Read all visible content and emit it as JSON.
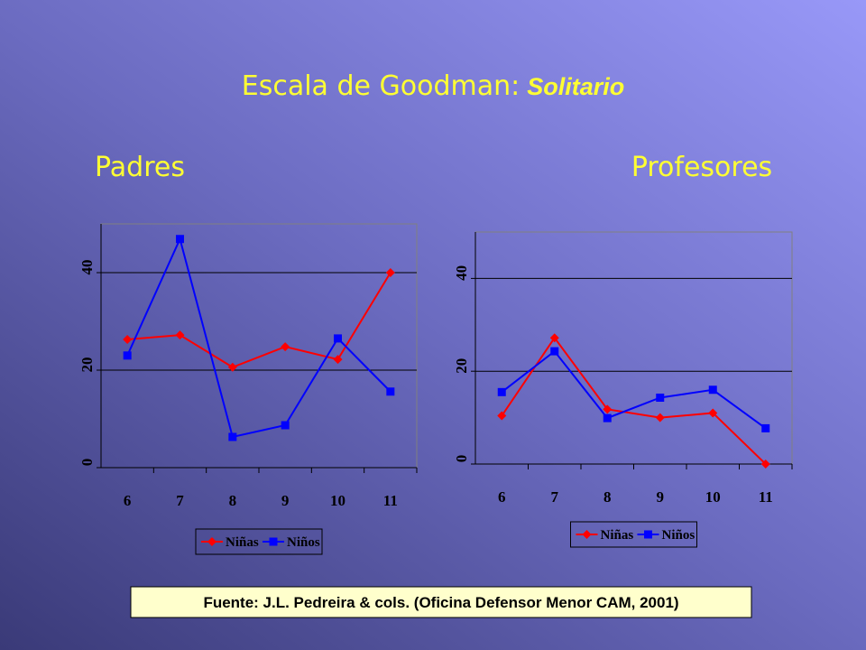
{
  "slide": {
    "title": "Escala de Goodman:",
    "title_emphasis": "Solitario",
    "source": "Fuente: J.L. Pedreira & cols. (Oficina Defensor Menor CAM, 2001)"
  },
  "chart_data": [
    {
      "type": "line",
      "title": "Padres",
      "categories": [
        "6",
        "7",
        "8",
        "9",
        "10",
        "11"
      ],
      "series": [
        {
          "name": "Niñas",
          "color": "#ff0000",
          "marker": "diamond",
          "values": [
            26.3,
            27.2,
            20.6,
            24.8,
            22.2,
            40
          ]
        },
        {
          "name": "Niños",
          "color": "#0000ff",
          "marker": "square",
          "values": [
            23,
            46.9,
            6.3,
            8.7,
            26.5,
            15.6
          ]
        }
      ],
      "ylim": [
        0,
        50
      ],
      "yticks": [
        0,
        20,
        40
      ],
      "grid": true,
      "legend": "bottom"
    },
    {
      "type": "line",
      "title": "Profesores",
      "categories": [
        "6",
        "7",
        "8",
        "9",
        "10",
        "11"
      ],
      "series": [
        {
          "name": "Niñas",
          "color": "#ff0000",
          "marker": "diamond",
          "values": [
            10.4,
            27.2,
            11.8,
            10,
            11,
            0
          ]
        },
        {
          "name": "Niños",
          "color": "#0000ff",
          "marker": "square",
          "values": [
            15.5,
            24.3,
            9.9,
            14.3,
            16,
            7.7
          ]
        }
      ],
      "ylim": [
        0,
        50
      ],
      "yticks": [
        0,
        20,
        40
      ],
      "grid": true,
      "legend": "bottom"
    }
  ]
}
